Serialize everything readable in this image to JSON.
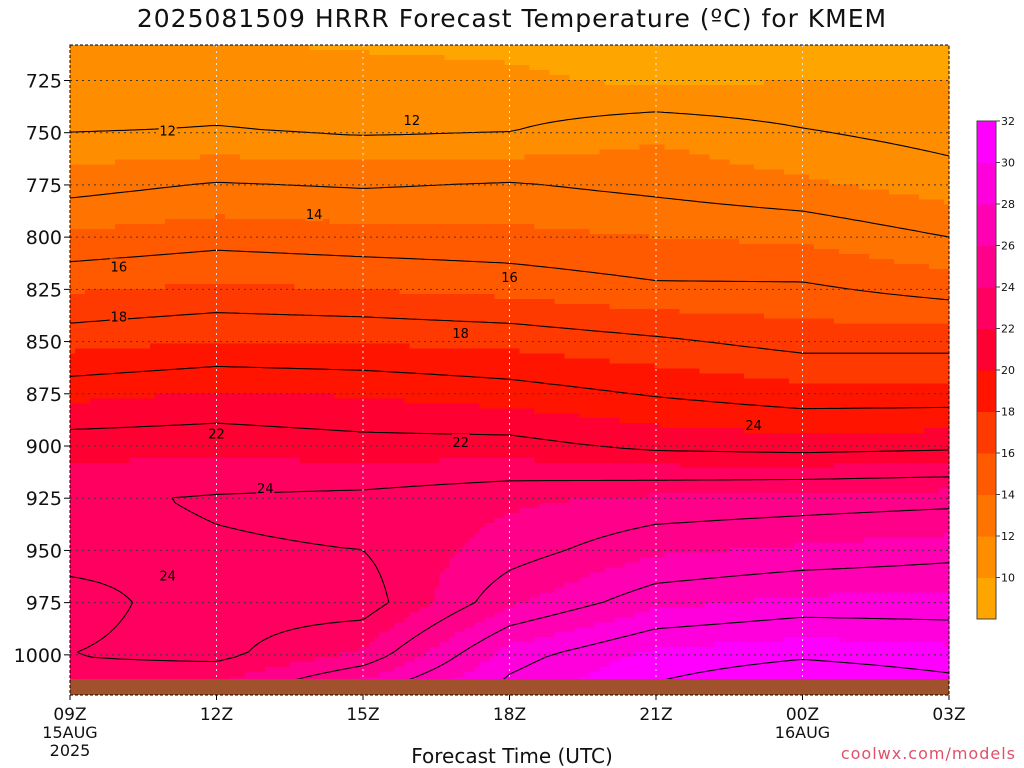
{
  "title": "2025081509 HRRR Forecast Temperature (ºC) for KMEM",
  "credit": "coolwx.com/models",
  "chart_data": {
    "type": "heatmap",
    "title": "2025081509 HRRR Forecast Temperature (ºC) for KMEM",
    "xlabel": "Forecast Time (UTC)",
    "ylabel": "",
    "x_ticks": [
      {
        "label": "09Z",
        "hour": 0,
        "sub": [
          "15AUG",
          "2025"
        ]
      },
      {
        "label": "12Z",
        "hour": 3,
        "sub": []
      },
      {
        "label": "15Z",
        "hour": 6,
        "sub": []
      },
      {
        "label": "18Z",
        "hour": 9,
        "sub": []
      },
      {
        "label": "21Z",
        "hour": 12,
        "sub": []
      },
      {
        "label": "00Z",
        "hour": 15,
        "sub": [
          "16AUG"
        ]
      },
      {
        "label": "03Z",
        "hour": 18,
        "sub": []
      }
    ],
    "xlim_hours": [
      0,
      18
    ],
    "y_ticks": [
      "725",
      "750",
      "775",
      "800",
      "825",
      "850",
      "875",
      "900",
      "925",
      "950",
      "975",
      "1000"
    ],
    "y_tick_values": [
      725,
      750,
      775,
      800,
      825,
      850,
      875,
      900,
      925,
      950,
      975,
      1000
    ],
    "ylim_hpa": [
      708,
      1013
    ],
    "y_inverted": true,
    "grid": "dotted",
    "colorbar": {
      "ticks": [
        "10",
        "12",
        "14",
        "16",
        "18",
        "20",
        "22",
        "24",
        "26",
        "28",
        "30",
        "32"
      ],
      "levels": [
        9,
        11,
        13,
        15,
        17,
        19,
        21,
        23,
        25,
        27,
        29,
        31,
        33
      ],
      "colors": [
        "#ffa500",
        "#ff8d00",
        "#ff7400",
        "#ff5a00",
        "#ff3a00",
        "#ff1400",
        "#ff0033",
        "#ff0060",
        "#ff008a",
        "#ff00b3",
        "#ff00dc",
        "#ff00ff"
      ]
    },
    "contour_interval": 2,
    "contour_labels": [
      {
        "text": "12",
        "hour": 2.0,
        "p": 749
      },
      {
        "text": "12",
        "hour": 7.0,
        "p": 744
      },
      {
        "text": "14",
        "hour": 5.0,
        "p": 789
      },
      {
        "text": "16",
        "hour": 1.0,
        "p": 814
      },
      {
        "text": "16",
        "hour": 9.0,
        "p": 819
      },
      {
        "text": "18",
        "hour": 1.0,
        "p": 838
      },
      {
        "text": "18",
        "hour": 8.0,
        "p": 846
      },
      {
        "text": "22",
        "hour": 3.0,
        "p": 894
      },
      {
        "text": "22",
        "hour": 8.0,
        "p": 898
      },
      {
        "text": "24",
        "hour": 14.0,
        "p": 890
      },
      {
        "text": "24",
        "hour": 4.0,
        "p": 920
      },
      {
        "text": "24",
        "hour": 2.0,
        "p": 962
      }
    ],
    "data": {
      "pressure_levels": [
        708,
        725,
        750,
        775,
        800,
        825,
        850,
        875,
        900,
        925,
        950,
        975,
        1000,
        1013
      ],
      "hours": [
        0,
        3,
        6,
        9,
        12,
        15,
        18
      ],
      "temperature_c": [
        [
          11.4,
          11.1,
          10.9,
          10.8,
          10.5,
          10.6,
          10.6
        ],
        [
          11.0,
          11.4,
          11.4,
          11.2,
          10.8,
          11.0,
          11.0
        ],
        [
          12.0,
          12.1,
          11.9,
          12.0,
          12.8,
          12.1,
          11.6
        ],
        [
          13.6,
          14.1,
          13.9,
          14.1,
          13.7,
          13.2,
          12.5
        ],
        [
          15.2,
          15.6,
          15.4,
          15.3,
          15.0,
          14.8,
          14.0
        ],
        [
          16.9,
          17.2,
          17.0,
          16.7,
          16.2,
          16.2,
          15.6
        ],
        [
          18.6,
          19.0,
          18.9,
          18.7,
          18.2,
          17.6,
          17.6
        ],
        [
          20.7,
          21.1,
          20.9,
          20.5,
          19.9,
          19.4,
          19.4
        ],
        [
          22.6,
          22.7,
          22.4,
          22.4,
          21.7,
          21.5,
          21.7
        ],
        [
          23.8,
          24.1,
          24.3,
          24.8,
          25.2,
          25.4,
          25.6
        ],
        [
          23.7,
          23.9,
          24.0,
          25.5,
          26.8,
          27.2,
          27.6
        ],
        [
          24.3,
          23.6,
          23.4,
          26.8,
          28.7,
          29.3,
          29.3
        ],
        [
          24.0,
          23.7,
          25.2,
          29.5,
          31.3,
          31.8,
          31.4
        ],
        [
          24.4,
          24.9,
          27.2,
          30.2,
          32.0,
          33.0,
          32.3
        ]
      ]
    },
    "ground_color": "#a0522d"
  }
}
